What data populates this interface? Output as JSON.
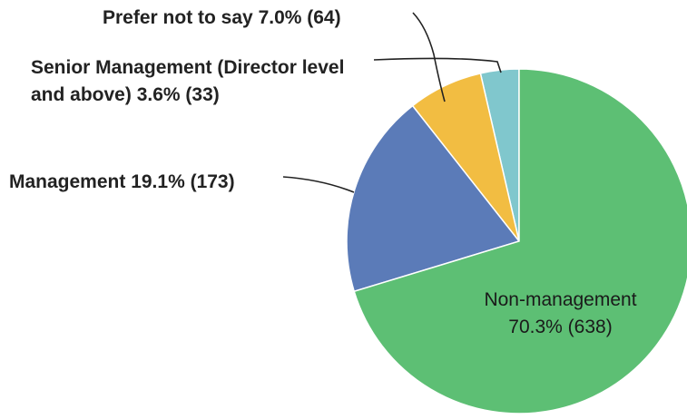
{
  "chart_data": {
    "type": "pie",
    "categories": [
      "Non-management",
      "Management",
      "Prefer not to say",
      "Senior Management (Director level and above)"
    ],
    "values": [
      70.3,
      19.1,
      7.0,
      3.6
    ],
    "value_labels": [
      "70.3% (638)",
      "19.1% (173)",
      "7.0% (64)",
      "3.6% (33)"
    ],
    "colors": [
      "#5dbf74",
      "#5b7bb8",
      "#f2bd42",
      "#80c7cd"
    ]
  }
}
